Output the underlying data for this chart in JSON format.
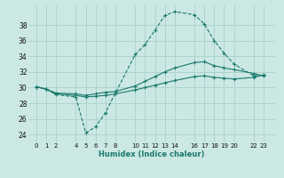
{
  "xlabel": "Humidex (Indice chaleur)",
  "background_color": "#cce8e4",
  "grid_color": "#aed4ce",
  "line_color": "#1a7a6e",
  "xtick_positions": [
    0,
    1,
    2,
    4,
    5,
    6,
    7,
    8,
    10,
    11,
    12,
    13,
    14,
    16,
    17,
    18,
    19,
    20,
    22,
    23
  ],
  "xtick_labels": [
    "0",
    "1",
    "2",
    "4",
    "5",
    "6",
    "7",
    "8",
    "10",
    "11",
    "12",
    "13",
    "14",
    "16",
    "17",
    "18",
    "19",
    "20",
    "22",
    "23"
  ],
  "yticks": [
    24,
    26,
    28,
    30,
    32,
    34,
    36,
    38
  ],
  "ylim": [
    23.0,
    40.5
  ],
  "xlim": [
    -0.8,
    24.2
  ],
  "line1_x": [
    0,
    1,
    2,
    4,
    5,
    6,
    7,
    8,
    10,
    11,
    12,
    13,
    14,
    16,
    17,
    18,
    19,
    20,
    22,
    23
  ],
  "line1_y": [
    30.1,
    29.8,
    29.1,
    28.8,
    24.2,
    25.0,
    26.8,
    29.3,
    34.2,
    35.5,
    37.3,
    39.2,
    39.7,
    39.3,
    38.1,
    36.0,
    34.4,
    33.0,
    31.5,
    31.6
  ],
  "line2_x": [
    0,
    1,
    2,
    4,
    5,
    6,
    7,
    8,
    10,
    11,
    12,
    13,
    14,
    16,
    17,
    18,
    19,
    20,
    22,
    23
  ],
  "line2_y": [
    30.1,
    29.8,
    29.3,
    29.2,
    29.0,
    29.2,
    29.4,
    29.5,
    30.2,
    30.8,
    31.4,
    32.0,
    32.5,
    33.2,
    33.3,
    32.8,
    32.5,
    32.3,
    31.8,
    31.5
  ],
  "line3_x": [
    0,
    1,
    2,
    4,
    5,
    6,
    7,
    8,
    10,
    11,
    12,
    13,
    14,
    16,
    17,
    18,
    19,
    20,
    22,
    23
  ],
  "line3_y": [
    30.1,
    29.8,
    29.2,
    29.0,
    28.8,
    28.9,
    29.0,
    29.2,
    29.7,
    30.0,
    30.3,
    30.6,
    30.9,
    31.4,
    31.5,
    31.3,
    31.2,
    31.1,
    31.3,
    31.6
  ]
}
